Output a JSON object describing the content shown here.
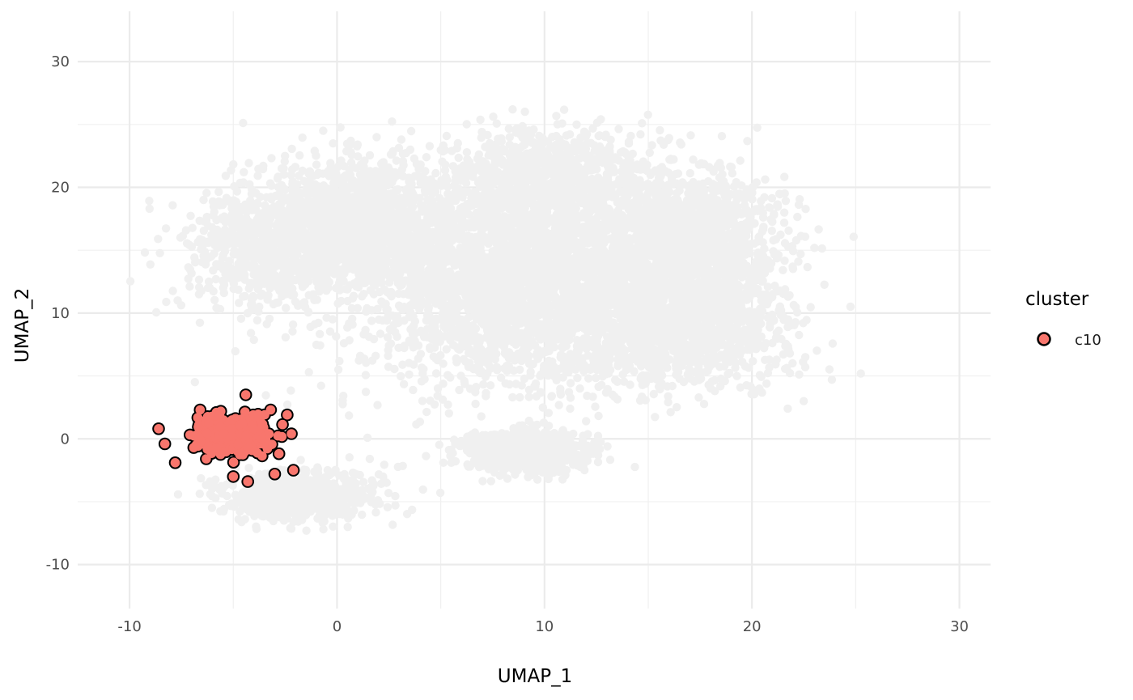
{
  "chart_data": {
    "type": "scatter",
    "xlabel": "UMAP_1",
    "ylabel": "UMAP_2",
    "xlim": [
      -12.5,
      31.5
    ],
    "ylim": [
      -13.5,
      34
    ],
    "x_ticks": [
      -10,
      0,
      10,
      20,
      30
    ],
    "y_ticks": [
      -10,
      0,
      10,
      20,
      30
    ],
    "x_tick_labels": [
      "-10",
      "0",
      "10",
      "20",
      "30"
    ],
    "y_tick_labels": [
      "-10",
      "0",
      "10",
      "20",
      "30"
    ],
    "grid": true,
    "legend": {
      "title": "cluster",
      "placement": "right",
      "entries": [
        {
          "label": "c10",
          "color": "#F8766D"
        }
      ]
    },
    "background_color": "#F0F0F0",
    "highlight_color": "#F8766D",
    "highlight_outline": "#000000",
    "series": [
      {
        "role": "background",
        "groups": [
          {
            "center": [
              1,
              17
            ],
            "spread": [
              4,
              4
            ],
            "count": 1600
          },
          {
            "center": [
              -4,
              15
            ],
            "spread": [
              3,
              4
            ],
            "count": 500
          },
          {
            "center": [
              10,
              13
            ],
            "spread": [
              6,
              6.5
            ],
            "count": 3200
          },
          {
            "center": [
              17,
              16
            ],
            "spread": [
              3.5,
              4
            ],
            "count": 1200
          },
          {
            "center": [
              17,
              9
            ],
            "spread": [
              4,
              3.5
            ],
            "count": 900
          },
          {
            "center": [
              10,
              21
            ],
            "spread": [
              4,
              3
            ],
            "count": 700
          },
          {
            "center": [
              9,
              -1
            ],
            "spread": [
              2.3,
              1.3
            ],
            "count": 900
          },
          {
            "center": [
              -2,
              -4.5
            ],
            "spread": [
              3,
              1.6
            ],
            "count": 700
          },
          {
            "center": [
              7,
              10
            ],
            "spread": [
              9,
              7
            ],
            "count": 400
          }
        ]
      },
      {
        "name": "c10",
        "role": "highlight",
        "groups": [
          {
            "center": [
              -5,
              0.3
            ],
            "spread": [
              1.35,
              1.1
            ],
            "count": 450
          }
        ],
        "extra_points": [
          [
            -8.6,
            0.8
          ],
          [
            -8.3,
            -0.4
          ],
          [
            -7.8,
            -1.9
          ],
          [
            -2.1,
            -2.5
          ],
          [
            -2.2,
            0.4
          ],
          [
            -2.4,
            1.9
          ],
          [
            -4.3,
            -3.4
          ],
          [
            -4.4,
            3.5
          ],
          [
            -3.0,
            -2.8
          ],
          [
            -5.0,
            -3.0
          ],
          [
            -6.6,
            2.3
          ],
          [
            -3.2,
            2.3
          ]
        ]
      }
    ]
  }
}
